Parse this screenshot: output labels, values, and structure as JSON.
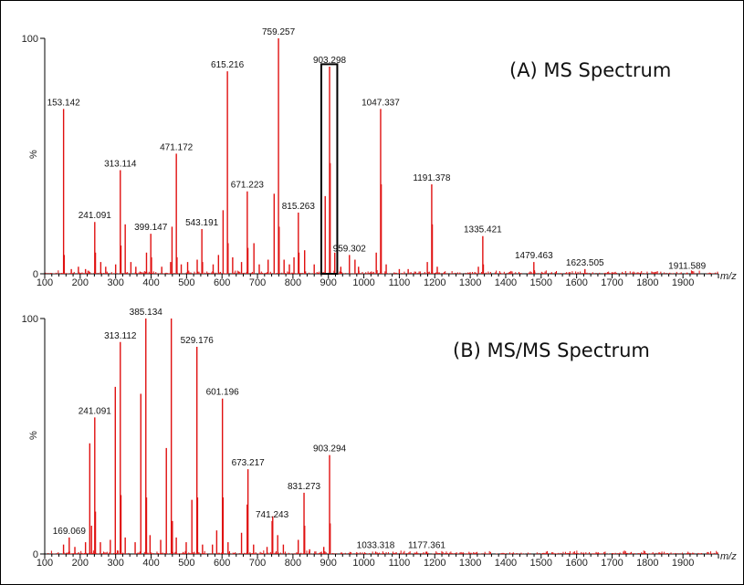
{
  "colors": {
    "peak": "#e01010",
    "axis": "#000000",
    "box": "#000000"
  },
  "chart_data": [
    {
      "type": "bar",
      "title": "(A) MS Spectrum",
      "xlabel": "m/z",
      "ylabel": "%",
      "xlim": [
        100,
        2000
      ],
      "ylim": [
        0,
        100
      ],
      "x_ticks": [
        "100",
        "200",
        "300",
        "400",
        "500",
        "600",
        "700",
        "800",
        "900",
        "1000",
        "1100",
        "1200",
        "1300",
        "1400",
        "1500",
        "1600",
        "1700",
        "1800",
        "1900"
      ],
      "y_ticks": [
        "0",
        "100"
      ],
      "highlight_box": {
        "x_range": [
          880,
          925
        ],
        "y_top": 89
      },
      "peaks": [
        {
          "x": 153.142,
          "y": 70,
          "label": "153.142"
        },
        {
          "x": 241.091,
          "y": 22,
          "label": "241.091"
        },
        {
          "x": 313.114,
          "y": 44,
          "label": "313.114"
        },
        {
          "x": 399.147,
          "y": 17,
          "label": "399.147"
        },
        {
          "x": 471.172,
          "y": 51,
          "label": "471.172"
        },
        {
          "x": 543.191,
          "y": 19,
          "label": "543.191"
        },
        {
          "x": 615.216,
          "y": 86,
          "label": "615.216"
        },
        {
          "x": 671.223,
          "y": 35,
          "label": "671.223"
        },
        {
          "x": 759.257,
          "y": 100,
          "label": "759.257"
        },
        {
          "x": 815.263,
          "y": 26,
          "label": "815.263"
        },
        {
          "x": 903.298,
          "y": 88,
          "label": "903.298"
        },
        {
          "x": 959.302,
          "y": 8,
          "label": "959.302"
        },
        {
          "x": 1047.337,
          "y": 70,
          "label": "1047.337"
        },
        {
          "x": 1191.378,
          "y": 38,
          "label": "1191.378"
        },
        {
          "x": 1335.421,
          "y": 16,
          "label": "1335.421"
        },
        {
          "x": 1479.463,
          "y": 5,
          "label": "1479.463"
        },
        {
          "x": 1623.505,
          "y": 2,
          "label": "1623.505"
        },
        {
          "x": 1911.589,
          "y": 0.5,
          "label": "1911.589"
        },
        {
          "x": 155,
          "y": 8
        },
        {
          "x": 175,
          "y": 2
        },
        {
          "x": 195,
          "y": 3
        },
        {
          "x": 215,
          "y": 2
        },
        {
          "x": 243,
          "y": 9
        },
        {
          "x": 258,
          "y": 5
        },
        {
          "x": 272,
          "y": 3
        },
        {
          "x": 300,
          "y": 4
        },
        {
          "x": 315,
          "y": 12
        },
        {
          "x": 327,
          "y": 21
        },
        {
          "x": 343,
          "y": 5
        },
        {
          "x": 357,
          "y": 3
        },
        {
          "x": 387,
          "y": 9
        },
        {
          "x": 401,
          "y": 7
        },
        {
          "x": 430,
          "y": 3
        },
        {
          "x": 455,
          "y": 5
        },
        {
          "x": 459,
          "y": 20
        },
        {
          "x": 473,
          "y": 7
        },
        {
          "x": 485,
          "y": 4
        },
        {
          "x": 503,
          "y": 5
        },
        {
          "x": 530,
          "y": 6
        },
        {
          "x": 545,
          "y": 5
        },
        {
          "x": 575,
          "y": 4
        },
        {
          "x": 590,
          "y": 8
        },
        {
          "x": 603,
          "y": 27
        },
        {
          "x": 617,
          "y": 13
        },
        {
          "x": 630,
          "y": 7
        },
        {
          "x": 655,
          "y": 5
        },
        {
          "x": 673,
          "y": 11
        },
        {
          "x": 690,
          "y": 13
        },
        {
          "x": 705,
          "y": 4
        },
        {
          "x": 730,
          "y": 6
        },
        {
          "x": 747,
          "y": 34
        },
        {
          "x": 761,
          "y": 20
        },
        {
          "x": 775,
          "y": 6
        },
        {
          "x": 790,
          "y": 4
        },
        {
          "x": 803,
          "y": 7
        },
        {
          "x": 817,
          "y": 9
        },
        {
          "x": 833,
          "y": 10
        },
        {
          "x": 860,
          "y": 4
        },
        {
          "x": 891,
          "y": 33
        },
        {
          "x": 905,
          "y": 47
        },
        {
          "x": 918,
          "y": 9
        },
        {
          "x": 935,
          "y": 3
        },
        {
          "x": 975,
          "y": 6
        },
        {
          "x": 985,
          "y": 3
        },
        {
          "x": 1035,
          "y": 9
        },
        {
          "x": 1049,
          "y": 38
        },
        {
          "x": 1063,
          "y": 4
        },
        {
          "x": 1100,
          "y": 2
        },
        {
          "x": 1125,
          "y": 2
        },
        {
          "x": 1179,
          "y": 5
        },
        {
          "x": 1193,
          "y": 21
        },
        {
          "x": 1207,
          "y": 3
        },
        {
          "x": 1323,
          "y": 3
        },
        {
          "x": 1337,
          "y": 4
        },
        {
          "x": 1481,
          "y": 1.5
        }
      ]
    },
    {
      "type": "bar",
      "title": "(B) MS/MS Spectrum",
      "xlabel": "m/z",
      "ylabel": "%",
      "xlim": [
        100,
        2000
      ],
      "ylim": [
        0,
        100
      ],
      "x_ticks": [
        "100",
        "200",
        "300",
        "400",
        "500",
        "600",
        "700",
        "800",
        "900",
        "1000",
        "1100",
        "1200",
        "1300",
        "1400",
        "1500",
        "1600",
        "1700",
        "1800",
        "1900"
      ],
      "y_ticks": [
        "0",
        "100"
      ],
      "peaks": [
        {
          "x": 169.069,
          "y": 7,
          "label": "169.069"
        },
        {
          "x": 241.091,
          "y": 58,
          "label": "241.091"
        },
        {
          "x": 313.112,
          "y": 90,
          "label": "313.112"
        },
        {
          "x": 385.134,
          "y": 100,
          "label": "385.134"
        },
        {
          "x": 529.176,
          "y": 88,
          "label": "529.176"
        },
        {
          "x": 601.196,
          "y": 66,
          "label": "601.196"
        },
        {
          "x": 673.217,
          "y": 36,
          "label": "673.217"
        },
        {
          "x": 741.243,
          "y": 14,
          "label": "741.243"
        },
        {
          "x": 831.273,
          "y": 26,
          "label": "831.273"
        },
        {
          "x": 903.294,
          "y": 42,
          "label": "903.294"
        },
        {
          "x": 1033.318,
          "y": 1,
          "label": "1033.318"
        },
        {
          "x": 1177.361,
          "y": 1,
          "label": "1177.361"
        },
        {
          "x": 153,
          "y": 4
        },
        {
          "x": 185,
          "y": 3
        },
        {
          "x": 215,
          "y": 5
        },
        {
          "x": 227,
          "y": 47
        },
        {
          "x": 232,
          "y": 12
        },
        {
          "x": 243,
          "y": 18
        },
        {
          "x": 257,
          "y": 5
        },
        {
          "x": 285,
          "y": 6
        },
        {
          "x": 299,
          "y": 71
        },
        {
          "x": 315,
          "y": 25
        },
        {
          "x": 327,
          "y": 7
        },
        {
          "x": 355,
          "y": 5
        },
        {
          "x": 371,
          "y": 68
        },
        {
          "x": 387,
          "y": 24
        },
        {
          "x": 397,
          "y": 8
        },
        {
          "x": 427,
          "y": 6
        },
        {
          "x": 443,
          "y": 45
        },
        {
          "x": 457,
          "y": 100
        },
        {
          "x": 460,
          "y": 14
        },
        {
          "x": 471,
          "y": 7
        },
        {
          "x": 499,
          "y": 5
        },
        {
          "x": 515,
          "y": 23
        },
        {
          "x": 531,
          "y": 24
        },
        {
          "x": 545,
          "y": 4
        },
        {
          "x": 573,
          "y": 4
        },
        {
          "x": 585,
          "y": 10
        },
        {
          "x": 603,
          "y": 24
        },
        {
          "x": 617,
          "y": 5
        },
        {
          "x": 655,
          "y": 9
        },
        {
          "x": 671,
          "y": 21
        },
        {
          "x": 689,
          "y": 4
        },
        {
          "x": 727,
          "y": 3
        },
        {
          "x": 743,
          "y": 16
        },
        {
          "x": 757,
          "y": 8
        },
        {
          "x": 773,
          "y": 4
        },
        {
          "x": 815,
          "y": 6
        },
        {
          "x": 833,
          "y": 12
        },
        {
          "x": 847,
          "y": 2
        },
        {
          "x": 887,
          "y": 3
        },
        {
          "x": 905,
          "y": 13
        }
      ]
    }
  ]
}
